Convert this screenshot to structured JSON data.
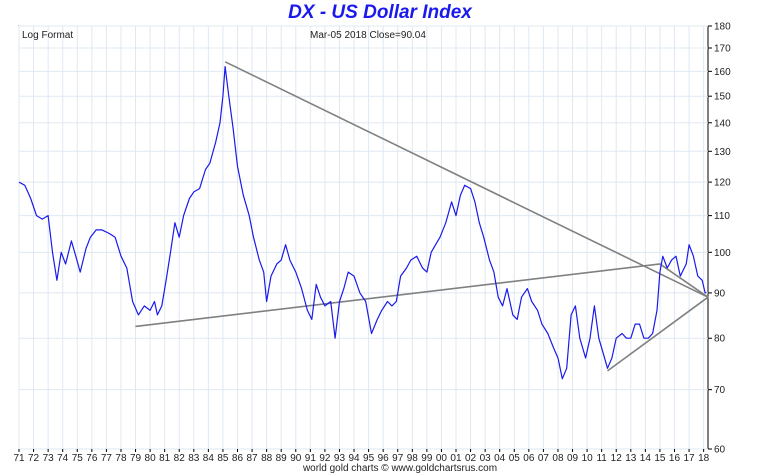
{
  "chart_data": {
    "type": "line",
    "title": "DX  -  US Dollar Index",
    "annotation_left": "Log Format",
    "annotation_center": "Mar-05  2018   Close=90.04",
    "footer": "world gold charts © www.goldchartsrus.com",
    "y_scale": "log",
    "ylim": [
      60,
      180
    ],
    "xlim": [
      1971.0,
      2018.3
    ],
    "y_ticks": [
      60,
      70,
      80,
      90,
      100,
      110,
      120,
      130,
      140,
      150,
      160,
      170,
      180
    ],
    "x_tick_labels": [
      "71",
      "72",
      "73",
      "74",
      "75",
      "76",
      "77",
      "78",
      "79",
      "80",
      "81",
      "82",
      "83",
      "84",
      "85",
      "86",
      "87",
      "88",
      "89",
      "90",
      "91",
      "92",
      "93",
      "94",
      "95",
      "96",
      "97",
      "98",
      "99",
      "00",
      "01",
      "02",
      "03",
      "04",
      "05",
      "06",
      "07",
      "08",
      "09",
      "10",
      "11",
      "12",
      "13",
      "14",
      "15",
      "16",
      "17",
      "18"
    ],
    "grid": true,
    "series": [
      {
        "color": "#1a1aee",
        "points": [
          [
            1971.0,
            120
          ],
          [
            1971.4,
            119
          ],
          [
            1971.8,
            115
          ],
          [
            1972.2,
            110
          ],
          [
            1972.6,
            109
          ],
          [
            1973.0,
            110
          ],
          [
            1973.3,
            100
          ],
          [
            1973.6,
            93
          ],
          [
            1973.9,
            100
          ],
          [
            1974.2,
            97
          ],
          [
            1974.6,
            103
          ],
          [
            1974.9,
            99
          ],
          [
            1975.2,
            95
          ],
          [
            1975.6,
            101
          ],
          [
            1975.9,
            104
          ],
          [
            1976.3,
            106
          ],
          [
            1976.7,
            106
          ],
          [
            1977.2,
            105
          ],
          [
            1977.6,
            104
          ],
          [
            1978.0,
            99
          ],
          [
            1978.4,
            96
          ],
          [
            1978.8,
            88
          ],
          [
            1979.2,
            85
          ],
          [
            1979.6,
            87
          ],
          [
            1980.0,
            86
          ],
          [
            1980.3,
            88
          ],
          [
            1980.5,
            85
          ],
          [
            1980.8,
            87
          ],
          [
            1981.1,
            93
          ],
          [
            1981.4,
            100
          ],
          [
            1981.7,
            108
          ],
          [
            1982.0,
            104
          ],
          [
            1982.3,
            110
          ],
          [
            1982.7,
            115
          ],
          [
            1983.0,
            117
          ],
          [
            1983.4,
            118
          ],
          [
            1983.8,
            124
          ],
          [
            1984.1,
            126
          ],
          [
            1984.5,
            133
          ],
          [
            1984.8,
            140
          ],
          [
            1985.0,
            150
          ],
          [
            1985.15,
            162
          ],
          [
            1985.4,
            150
          ],
          [
            1985.7,
            138
          ],
          [
            1986.0,
            125
          ],
          [
            1986.4,
            116
          ],
          [
            1986.8,
            110
          ],
          [
            1987.1,
            104
          ],
          [
            1987.5,
            98
          ],
          [
            1987.8,
            95
          ],
          [
            1988.0,
            88
          ],
          [
            1988.3,
            94
          ],
          [
            1988.7,
            97
          ],
          [
            1989.0,
            98
          ],
          [
            1989.3,
            102
          ],
          [
            1989.6,
            98
          ],
          [
            1990.0,
            95
          ],
          [
            1990.4,
            91
          ],
          [
            1990.8,
            86
          ],
          [
            1991.1,
            84
          ],
          [
            1991.4,
            92
          ],
          [
            1991.7,
            89
          ],
          [
            1992.0,
            87
          ],
          [
            1992.4,
            88
          ],
          [
            1992.7,
            80
          ],
          [
            1993.0,
            88
          ],
          [
            1993.3,
            91
          ],
          [
            1993.6,
            95
          ],
          [
            1994.0,
            94
          ],
          [
            1994.4,
            90
          ],
          [
            1994.8,
            88
          ],
          [
            1995.2,
            81
          ],
          [
            1995.6,
            84
          ],
          [
            1995.9,
            86
          ],
          [
            1996.3,
            88
          ],
          [
            1996.6,
            87
          ],
          [
            1996.9,
            88
          ],
          [
            1997.2,
            94
          ],
          [
            1997.6,
            96
          ],
          [
            1997.9,
            98
          ],
          [
            1998.3,
            99
          ],
          [
            1998.7,
            96
          ],
          [
            1999.0,
            95
          ],
          [
            1999.3,
            100
          ],
          [
            1999.6,
            102
          ],
          [
            1999.9,
            104
          ],
          [
            2000.3,
            108
          ],
          [
            2000.7,
            114
          ],
          [
            2001.0,
            110
          ],
          [
            2001.3,
            116
          ],
          [
            2001.6,
            119
          ],
          [
            2002.0,
            118
          ],
          [
            2002.3,
            114
          ],
          [
            2002.6,
            108
          ],
          [
            2002.9,
            104
          ],
          [
            2003.3,
            98
          ],
          [
            2003.6,
            95
          ],
          [
            2003.9,
            89
          ],
          [
            2004.2,
            87
          ],
          [
            2004.5,
            91
          ],
          [
            2004.9,
            85
          ],
          [
            2005.2,
            84
          ],
          [
            2005.5,
            89
          ],
          [
            2005.9,
            91
          ],
          [
            2006.2,
            88
          ],
          [
            2006.6,
            86
          ],
          [
            2006.9,
            83
          ],
          [
            2007.3,
            81
          ],
          [
            2007.7,
            78
          ],
          [
            2008.0,
            76
          ],
          [
            2008.3,
            72
          ],
          [
            2008.6,
            74
          ],
          [
            2008.9,
            85
          ],
          [
            2009.2,
            87
          ],
          [
            2009.5,
            80
          ],
          [
            2009.9,
            76
          ],
          [
            2010.2,
            80
          ],
          [
            2010.5,
            87
          ],
          [
            2010.8,
            80
          ],
          [
            2011.1,
            77
          ],
          [
            2011.4,
            74
          ],
          [
            2011.7,
            76
          ],
          [
            2012.0,
            80
          ],
          [
            2012.4,
            81
          ],
          [
            2012.7,
            80
          ],
          [
            2013.0,
            80
          ],
          [
            2013.3,
            83
          ],
          [
            2013.6,
            83
          ],
          [
            2013.9,
            80
          ],
          [
            2014.2,
            80
          ],
          [
            2014.5,
            81
          ],
          [
            2014.8,
            86
          ],
          [
            2015.0,
            95
          ],
          [
            2015.2,
            99
          ],
          [
            2015.5,
            96
          ],
          [
            2015.8,
            98
          ],
          [
            2016.1,
            99
          ],
          [
            2016.4,
            94
          ],
          [
            2016.8,
            97
          ],
          [
            2017.0,
            102
          ],
          [
            2017.3,
            99
          ],
          [
            2017.6,
            94
          ],
          [
            2017.9,
            93
          ],
          [
            2018.1,
            90
          ],
          [
            2018.2,
            90.04
          ]
        ]
      }
    ],
    "trendlines": [
      {
        "color": "#808080",
        "points": [
          [
            1985.15,
            164
          ],
          [
            2018.3,
            89
          ]
        ]
      },
      {
        "color": "#808080",
        "points": [
          [
            1979.0,
            82.5
          ],
          [
            2015.0,
            97
          ],
          [
            2018.3,
            89
          ]
        ]
      },
      {
        "color": "#808080",
        "points": [
          [
            2011.4,
            73.5
          ],
          [
            2018.3,
            89
          ]
        ]
      }
    ]
  }
}
